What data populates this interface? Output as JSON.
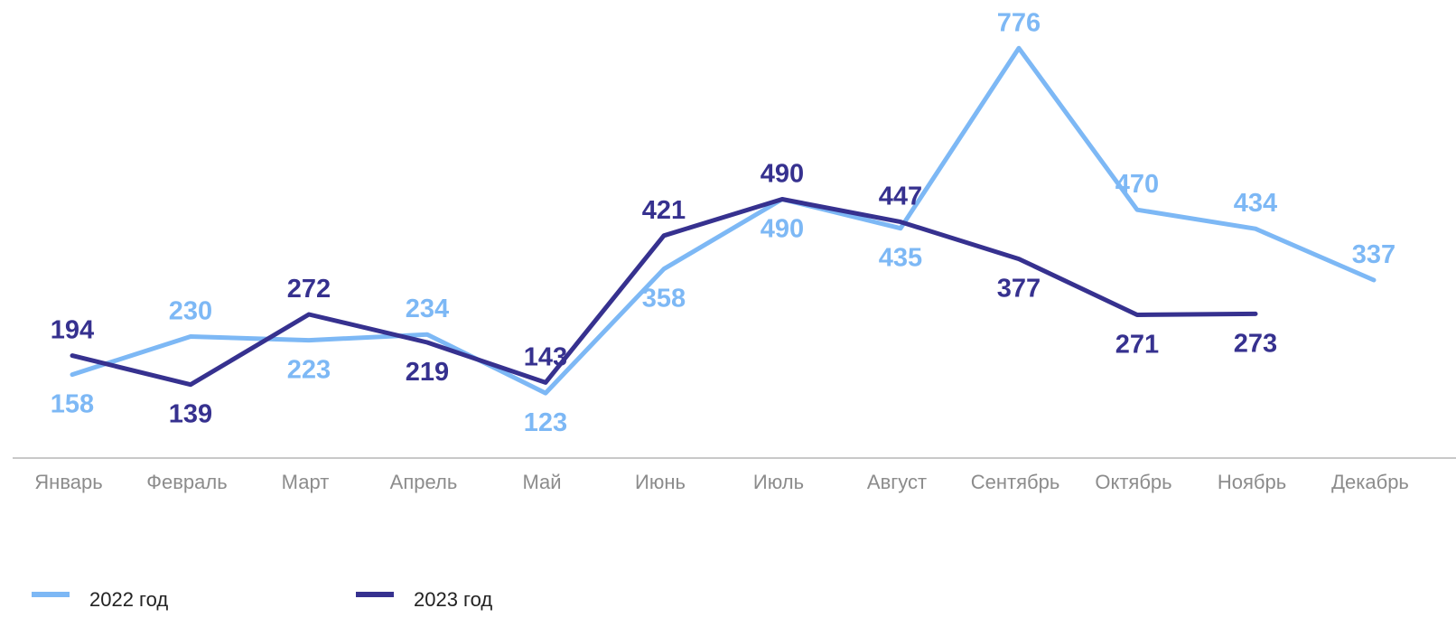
{
  "chart_data": {
    "type": "line",
    "title": "",
    "xlabel": "",
    "ylabel": "",
    "ylim": [
      0,
      850
    ],
    "grid": false,
    "legend_position": "bottom-left",
    "categories": [
      "Январь",
      "Февраль",
      "Март",
      "Апрель",
      "Май",
      "Июнь",
      "Июль",
      "Август",
      "Сентябрь",
      "Октябрь",
      "Ноябрь",
      "Декабрь"
    ],
    "series": [
      {
        "name": "2022 год",
        "color": "#7db8f5",
        "values": [
          158,
          230,
          223,
          234,
          123,
          358,
          490,
          435,
          776,
          470,
          434,
          337
        ],
        "labels": [
          "158",
          "230",
          "223",
          "234",
          "123",
          "358",
          "490",
          "435",
          "776",
          "470",
          "434",
          "337"
        ],
        "label_side": [
          "below",
          "above",
          "below",
          "above",
          "below",
          "below",
          "below",
          "below",
          "above",
          "above",
          "above",
          "above"
        ]
      },
      {
        "name": "2023 год",
        "color": "#36318f",
        "values": [
          194,
          139,
          272,
          219,
          143,
          421,
          490,
          447,
          377,
          271,
          273,
          null
        ],
        "labels": [
          "194",
          "139",
          "272",
          "219",
          "143",
          "421",
          "490",
          "447",
          "377",
          "271",
          "273",
          ""
        ],
        "label_side": [
          "above",
          "below",
          "above",
          "below",
          "above",
          "above",
          "above",
          "above",
          "below",
          "below",
          "below",
          "below"
        ]
      }
    ]
  }
}
